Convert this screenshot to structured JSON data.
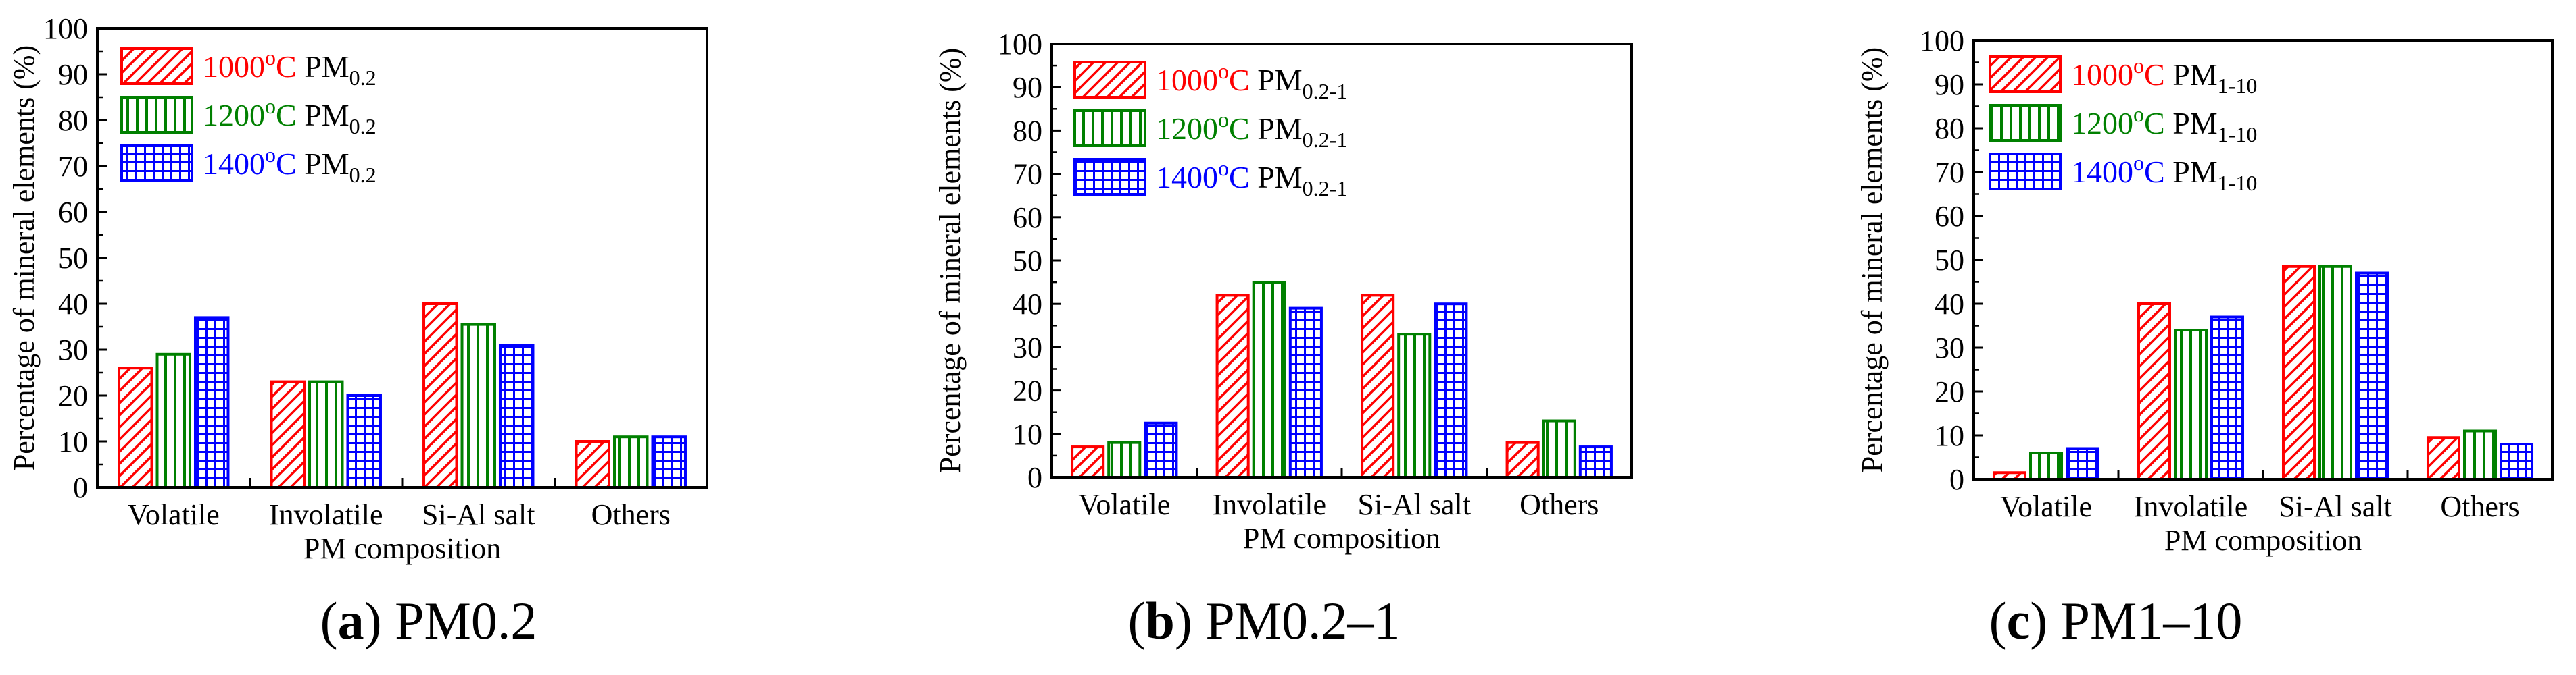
{
  "chart_data": [
    {
      "id": "a",
      "type": "bar",
      "caption_letter": "a",
      "caption_text": " PM0.2",
      "categories": [
        "Volatile",
        "Involatile",
        "Si-Al salt",
        "Others"
      ],
      "series": [
        {
          "name": "1000°C PM0.2",
          "temp": "1000",
          "sup": "o",
          "unit": "C",
          "pm_sub": "0.2",
          "color": "#ff0000",
          "pattern": "diag",
          "values": [
            26,
            23,
            40,
            10
          ]
        },
        {
          "name": "1200°C PM0.2",
          "temp": "1200",
          "sup": "o",
          "unit": "C",
          "pm_sub": "0.2",
          "color": "#008000",
          "pattern": "vert",
          "values": [
            29,
            23,
            35.5,
            11
          ]
        },
        {
          "name": "1400°C PM0.2",
          "temp": "1400",
          "sup": "o",
          "unit": "C",
          "pm_sub": "0.2",
          "color": "#0000ff",
          "pattern": "grid",
          "values": [
            37,
            20,
            31,
            11
          ]
        }
      ],
      "pm_label": "PM",
      "title": "",
      "xlabel": "PM composition",
      "ylabel": "Percentage of mineral elements (%)",
      "ylim": [
        0,
        100
      ],
      "yticks": [
        "0",
        "10",
        "20",
        "30",
        "40",
        "50",
        "60",
        "70",
        "80",
        "90",
        "100"
      ],
      "legend_position": "top-left"
    },
    {
      "id": "b",
      "type": "bar",
      "caption_letter": "b",
      "caption_text": " PM0.2–1",
      "categories": [
        "Volatile",
        "Involatile",
        "Si-Al salt",
        "Others"
      ],
      "series": [
        {
          "name": "1000°C PM0.2-1",
          "temp": "1000",
          "sup": "o",
          "unit": "C",
          "pm_sub": "0.2-1",
          "color": "#ff0000",
          "pattern": "diag",
          "values": [
            7,
            42,
            42,
            8
          ]
        },
        {
          "name": "1200°C PM0.2-1",
          "temp": "1200",
          "sup": "o",
          "unit": "C",
          "pm_sub": "0.2-1",
          "color": "#008000",
          "pattern": "vert",
          "values": [
            8,
            45,
            33,
            13
          ]
        },
        {
          "name": "1400°C PM0.2-1",
          "temp": "1400",
          "sup": "o",
          "unit": "C",
          "pm_sub": "0.2-1",
          "color": "#0000ff",
          "pattern": "grid",
          "values": [
            12.5,
            39,
            40,
            7
          ]
        }
      ],
      "pm_label": "PM",
      "title": "",
      "xlabel": "PM composition",
      "ylabel": "Percentage of mineral elements (%)",
      "ylim": [
        0,
        100
      ],
      "yticks": [
        "0",
        "10",
        "20",
        "30",
        "40",
        "50",
        "60",
        "70",
        "80",
        "90",
        "100"
      ],
      "legend_position": "top-left"
    },
    {
      "id": "c",
      "type": "bar",
      "caption_letter": "c",
      "caption_text": " PM1–10",
      "categories": [
        "Volatile",
        "Involatile",
        "Si-Al salt",
        "Others"
      ],
      "series": [
        {
          "name": "1000°C PM1-10",
          "temp": "1000",
          "sup": "o",
          "unit": "C",
          "pm_sub": "1-10",
          "color": "#ff0000",
          "pattern": "diag",
          "values": [
            1.5,
            40,
            48.5,
            9.5
          ]
        },
        {
          "name": "1200°C PM1-10",
          "temp": "1200",
          "sup": "o",
          "unit": "C",
          "pm_sub": "1-10",
          "color": "#008000",
          "pattern": "vert",
          "values": [
            6,
            34,
            48.5,
            11
          ]
        },
        {
          "name": "1400°C PM1-10",
          "temp": "1400",
          "sup": "o",
          "unit": "C",
          "pm_sub": "1-10",
          "color": "#0000ff",
          "pattern": "grid",
          "values": [
            7,
            37,
            47,
            8
          ]
        }
      ],
      "pm_label": "PM",
      "title": "",
      "xlabel": "PM composition",
      "ylabel": "Percentage of mineral elements (%)",
      "ylim": [
        0,
        100
      ],
      "yticks": [
        "0",
        "10",
        "20",
        "30",
        "40",
        "50",
        "60",
        "70",
        "80",
        "90",
        "100"
      ],
      "legend_position": "top-left"
    }
  ]
}
